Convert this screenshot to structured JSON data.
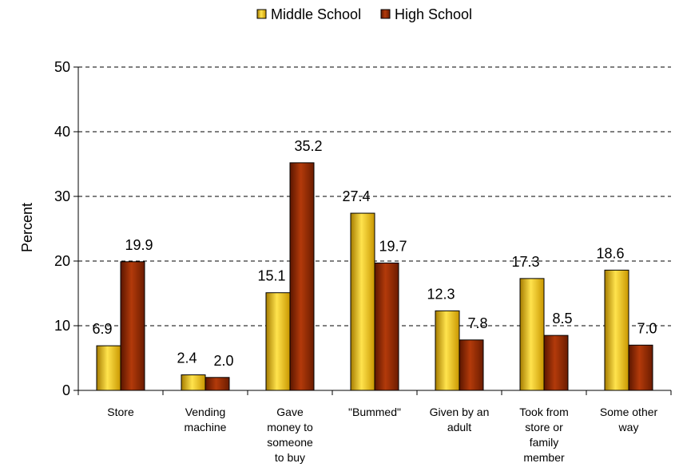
{
  "chart_data": {
    "type": "bar",
    "ylabel": "Percent",
    "ylim": [
      0,
      50
    ],
    "yticks": [
      0,
      10,
      20,
      30,
      40,
      50
    ],
    "grid": "horizontal-dashed",
    "legend_position": "top-center",
    "categories": [
      [
        "Store"
      ],
      [
        "Vending",
        "machine"
      ],
      [
        "Gave",
        "money to",
        "someone",
        "to buy"
      ],
      [
        "\"Bummed\""
      ],
      [
        "Given by an",
        "adult"
      ],
      [
        "Took from",
        "store or",
        "family",
        "member"
      ],
      [
        "Some other",
        "way"
      ]
    ],
    "series": [
      {
        "name": "Middle School",
        "color": "#f5c518",
        "values": [
          6.9,
          2.4,
          15.1,
          27.4,
          12.3,
          17.3,
          18.6
        ],
        "labels": [
          "6.9",
          "2.4",
          "15.1",
          "27.4",
          "12.3",
          "17.3",
          "18.6"
        ]
      },
      {
        "name": "High School",
        "color": "#8b2500",
        "values": [
          19.9,
          2.0,
          35.2,
          19.7,
          7.8,
          8.5,
          7.0
        ],
        "labels": [
          "19.9",
          "2.0",
          "35.2",
          "19.7",
          "7.8",
          "8.5",
          "7.0"
        ]
      }
    ]
  }
}
